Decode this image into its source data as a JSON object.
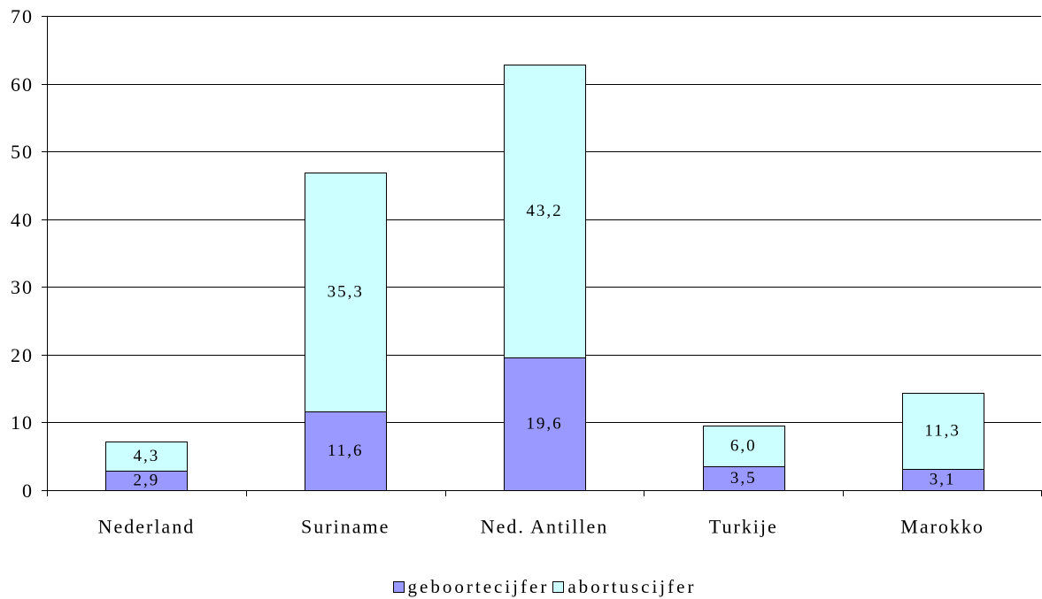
{
  "chart_data": {
    "type": "bar",
    "stacked": true,
    "categories": [
      "Nederland",
      "Suriname",
      "Ned. Antillen",
      "Turkije",
      "Marokko"
    ],
    "series": [
      {
        "name": "geboortecijfer",
        "color": "#9999FF",
        "values": [
          2.9,
          11.6,
          19.6,
          3.5,
          3.1
        ],
        "labels": [
          "2,9",
          "11,6",
          "19,6",
          "3,5",
          "3,1"
        ]
      },
      {
        "name": "abortuscijfer",
        "color": "#CCFFFF",
        "values": [
          4.3,
          35.3,
          43.2,
          6.0,
          11.3
        ],
        "labels": [
          "4,3",
          "35,3",
          "43,2",
          "6,0",
          "11,3"
        ]
      }
    ],
    "ylim": [
      0,
      70
    ],
    "yticks": [
      0,
      10,
      20,
      30,
      40,
      50,
      60,
      70
    ],
    "grid": true,
    "legend": "bottom"
  }
}
